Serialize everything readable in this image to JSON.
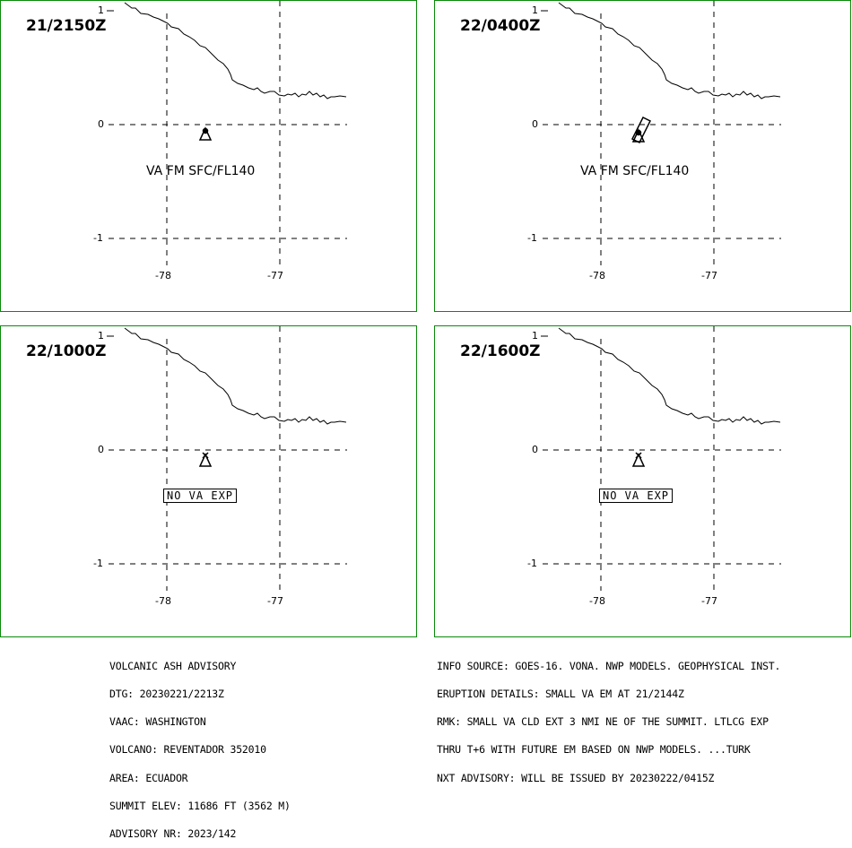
{
  "panels": [
    {
      "time": "21/2150Z",
      "lat_ticks": [
        "1",
        "0",
        "-1"
      ],
      "lon_ticks": [
        "-78",
        "-77"
      ],
      "label": "VA FM SFC/FL140",
      "label_type": "text",
      "ash_cloud": false
    },
    {
      "time": "22/0400Z",
      "lat_ticks": [
        "1",
        "0",
        "-1"
      ],
      "lon_ticks": [
        "-78",
        "-77"
      ],
      "label": "VA FM SFC/FL140",
      "label_type": "text",
      "ash_cloud": true
    },
    {
      "time": "22/1000Z",
      "lat_ticks": [
        "1",
        "0",
        "-1"
      ],
      "lon_ticks": [
        "-78",
        "-77"
      ],
      "label": "NO VA EXP",
      "label_type": "box",
      "ash_cloud": false
    },
    {
      "time": "22/1600Z",
      "lat_ticks": [
        "1",
        "0",
        "-1"
      ],
      "lon_ticks": [
        "-78",
        "-77"
      ],
      "label": "NO VA EXP",
      "label_type": "box",
      "ash_cloud": false
    }
  ],
  "advisory_left": [
    "VOLCANIC ASH ADVISORY",
    "DTG: 20230221/2213Z",
    "VAAC: WASHINGTON",
    "VOLCANO: REVENTADOR 352010",
    "AREA: ECUADOR",
    "SUMMIT ELEV: 11686 FT (3562 M)",
    "ADVISORY NR: 2023/142"
  ],
  "advisory_right": [
    "INFO SOURCE: GOES-16. VONA. NWP MODELS. GEOPHYSICAL INST.",
    "ERUPTION DETAILS: SMALL VA EM AT 21/2144Z",
    "RMK: SMALL VA CLD EXT 3 NMI NE OF THE SUMMIT. LTLCG EXP",
    "THRU T+6 WITH FUTURE EM BASED ON NWP MODELS. ...TURK",
    "NXT ADVISORY: WILL BE ISSUED BY 20230222/0415Z"
  ],
  "colors": {
    "frame": "#0a8a0a",
    "lines": "#000000",
    "background": "#ffffff"
  },
  "icons": {
    "volcano": "volcano-triangle-icon"
  }
}
